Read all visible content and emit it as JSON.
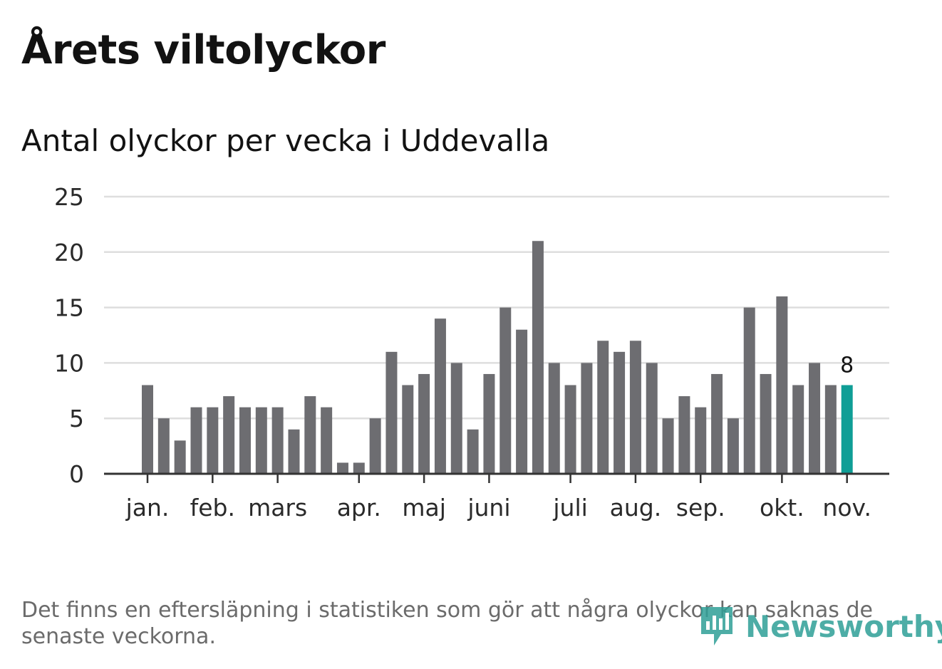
{
  "header": {
    "title": "Årets viltolyckor",
    "subtitle": "Antal olyckor per vecka i Uddevalla"
  },
  "footer": {
    "note": "Det finns en eftersläpning i statistiken som gör att några olyckor kan saknas de senaste veckorna.",
    "brand": "Newsworthy"
  },
  "colors": {
    "bar": "#6d6d71",
    "highlight": "#0f9e96",
    "grid": "#dedede",
    "axis": "#333333",
    "brand": "#2f9f97"
  },
  "chart_data": {
    "type": "bar",
    "title": "Antal olyckor per vecka i Uddevalla",
    "xlabel": "",
    "ylabel": "",
    "ylim": [
      0,
      25
    ],
    "yticks": [
      0,
      5,
      10,
      15,
      20,
      25
    ],
    "grid": true,
    "legend": "none",
    "values": [
      8,
      5,
      3,
      6,
      6,
      7,
      6,
      6,
      6,
      4,
      7,
      6,
      1,
      1,
      5,
      11,
      8,
      9,
      14,
      10,
      4,
      9,
      15,
      13,
      21,
      10,
      8,
      10,
      12,
      11,
      12,
      10,
      5,
      7,
      6,
      9,
      5,
      15,
      9,
      16,
      8,
      10,
      8,
      8
    ],
    "highlight_index": 43,
    "highlight_label": "8",
    "month_ticks": [
      {
        "label": "jan.",
        "bar_index": 0
      },
      {
        "label": "feb.",
        "bar_index": 4
      },
      {
        "label": "mars",
        "bar_index": 8
      },
      {
        "label": "apr.",
        "bar_index": 13
      },
      {
        "label": "maj",
        "bar_index": 17
      },
      {
        "label": "juni",
        "bar_index": 21
      },
      {
        "label": "juli",
        "bar_index": 26
      },
      {
        "label": "aug.",
        "bar_index": 30
      },
      {
        "label": "sep.",
        "bar_index": 34
      },
      {
        "label": "okt.",
        "bar_index": 39
      },
      {
        "label": "nov.",
        "bar_index": 43
      }
    ]
  }
}
